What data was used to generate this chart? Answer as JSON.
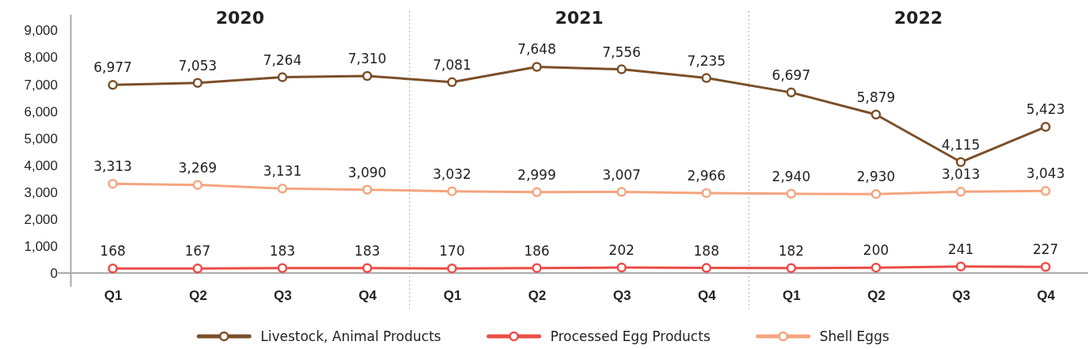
{
  "chart_data": {
    "type": "line",
    "categories": [
      "Q1",
      "Q2",
      "Q3",
      "Q4",
      "Q1",
      "Q2",
      "Q3",
      "Q4",
      "Q1",
      "Q2",
      "Q3",
      "Q4"
    ],
    "annotations": [
      "2020",
      "2021",
      "2022"
    ],
    "series": [
      {
        "name": "Livestock, Animal Products",
        "color": "#7b4f28",
        "values": [
          6977,
          7053,
          7264,
          7310,
          7081,
          7648,
          7556,
          7235,
          6697,
          5879,
          4115,
          5423
        ],
        "value_labels": [
          "6,977",
          "7,053",
          "7,264",
          "7,310",
          "7,081",
          "7,648",
          "7,556",
          "7,235",
          "6,697",
          "5,879",
          "4,115",
          "5,423"
        ]
      },
      {
        "name": "Processed Egg Products",
        "color": "#ec4c46",
        "values": [
          168,
          167,
          183,
          183,
          170,
          186,
          202,
          188,
          182,
          200,
          241,
          227
        ],
        "value_labels": [
          "168",
          "167",
          "183",
          "183",
          "170",
          "186",
          "202",
          "188",
          "182",
          "200",
          "241",
          "227"
        ]
      },
      {
        "name": "Shell Eggs",
        "color": "#f4a47e",
        "values": [
          3313,
          3269,
          3131,
          3090,
          3032,
          2999,
          3007,
          2966,
          2940,
          2930,
          3013,
          3043
        ],
        "value_labels": [
          "3,313",
          "3,269",
          "3,131",
          "3,090",
          "3,032",
          "2,999",
          "3,007",
          "2,966",
          "2,940",
          "2,930",
          "3,013",
          "3,043"
        ]
      }
    ],
    "ylim": [
      -500,
      9600
    ],
    "yticks": [
      {
        "value": 0,
        "label": "0"
      },
      {
        "value": 1000,
        "label": "1,000"
      },
      {
        "value": 2000,
        "label": "2,000"
      },
      {
        "value": 3000,
        "label": "3,000"
      },
      {
        "value": 4000,
        "label": "4,000"
      },
      {
        "value": 5000,
        "label": "5,000"
      },
      {
        "value": 6000,
        "label": "6,000"
      },
      {
        "value": 7000,
        "label": "7,000"
      },
      {
        "value": 8000,
        "label": "8,000"
      },
      {
        "value": 9000,
        "label": "9,000"
      }
    ],
    "legend": "bottom",
    "marker": "circle"
  }
}
